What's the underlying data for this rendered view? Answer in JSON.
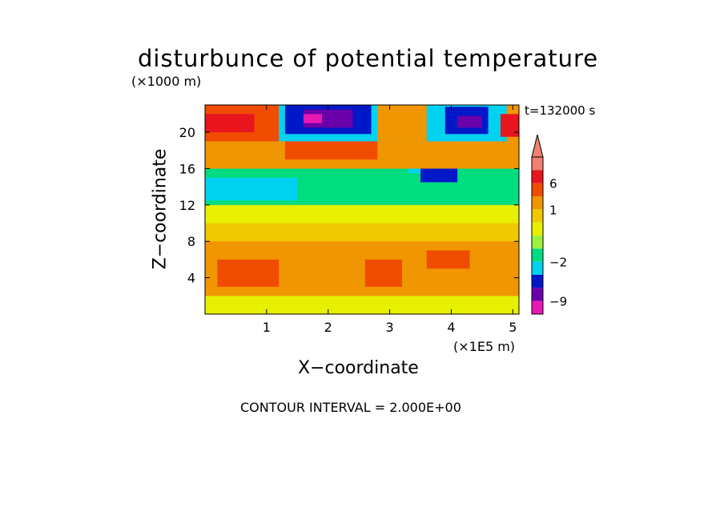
{
  "chart_data": {
    "type": "heatmap",
    "title": "disturbunce of potential temperature",
    "time_label": "t=132000 s",
    "xlabel": "X−coordinate",
    "ylabel": "Z−coordinate",
    "x_unit": "(×1E5 m)",
    "y_unit": "(×1000 m)",
    "xlim": [
      0,
      5.1
    ],
    "ylim": [
      0,
      23
    ],
    "x_ticks": [
      "1",
      "2",
      "3",
      "4",
      "5"
    ],
    "y_ticks": [
      "4",
      "8",
      "12",
      "16",
      "20"
    ],
    "contour_interval_label": "CONTOUR INTERVAL = 2.000E+00",
    "colorbar": {
      "tick_labels": [
        "6",
        "1",
        "−2",
        "−9"
      ],
      "tick_values": [
        6,
        1,
        -2,
        -9
      ],
      "levels": [
        {
          "from": 9,
          "to": 15,
          "color": "#f08070"
        },
        {
          "from": 6,
          "to": 9,
          "color": "#e8141e"
        },
        {
          "from": 3,
          "to": 6,
          "color": "#f04c00"
        },
        {
          "from": 1,
          "to": 3,
          "color": "#f09600"
        },
        {
          "from": 0,
          "to": 1,
          "color": "#f0c800"
        },
        {
          "from": -1,
          "to": 0,
          "color": "#e6f000"
        },
        {
          "from": -1.5,
          "to": -1,
          "color": "#9ef040"
        },
        {
          "from": -2,
          "to": -1.5,
          "color": "#00dc80"
        },
        {
          "from": -3,
          "to": -2,
          "color": "#00d2f0"
        },
        {
          "from": -6,
          "to": -3,
          "color": "#0018c8"
        },
        {
          "from": -9,
          "to": -6,
          "color": "#6a00aa"
        },
        {
          "from": -15,
          "to": -9,
          "color": "#e818b4"
        }
      ]
    },
    "field_regions": [
      {
        "x": [
          0,
          5.1
        ],
        "z": [
          0,
          23
        ],
        "value": 1
      },
      {
        "x": [
          0,
          5.1
        ],
        "z": [
          0,
          2
        ],
        "value": -0.5
      },
      {
        "x": [
          0,
          5.1
        ],
        "z": [
          2,
          8
        ],
        "value": 2
      },
      {
        "x": [
          0,
          5.1
        ],
        "z": [
          8,
          10
        ],
        "value": 0
      },
      {
        "x": [
          0,
          5.1
        ],
        "z": [
          10,
          12
        ],
        "value": -0.5
      },
      {
        "x": [
          0,
          5.1
        ],
        "z": [
          12,
          16
        ],
        "value": -1.7
      },
      {
        "x": [
          0,
          1.5
        ],
        "z": [
          12.5,
          15
        ],
        "value": -2.5
      },
      {
        "x": [
          3.3,
          4.1
        ],
        "z": [
          15.5,
          19
        ],
        "value": -2.5
      },
      {
        "x": [
          3.5,
          4.1
        ],
        "z": [
          14.5,
          16
        ],
        "value": -4
      },
      {
        "x": [
          0,
          5.1
        ],
        "z": [
          16,
          19
        ],
        "value": 1
      },
      {
        "x": [
          1.3,
          2.8
        ],
        "z": [
          17,
          19.5
        ],
        "value": 3
      },
      {
        "x": [
          0,
          1.2
        ],
        "z": [
          19,
          23
        ],
        "value": 4
      },
      {
        "x": [
          0,
          0.8
        ],
        "z": [
          20,
          22
        ],
        "value": 7
      },
      {
        "x": [
          1.2,
          3.2
        ],
        "z": [
          19,
          23
        ],
        "value": -2.5
      },
      {
        "x": [
          1.3,
          2.7
        ],
        "z": [
          19.8,
          23
        ],
        "value": -4
      },
      {
        "x": [
          1.6,
          2.4
        ],
        "z": [
          20.5,
          22.5
        ],
        "value": -7
      },
      {
        "x": [
          1.6,
          1.9
        ],
        "z": [
          21,
          22
        ],
        "value": -11
      },
      {
        "x": [
          2.8,
          3.6
        ],
        "z": [
          19,
          23
        ],
        "value": 2
      },
      {
        "x": [
          3.6,
          4.9
        ],
        "z": [
          19,
          23
        ],
        "value": -2.5
      },
      {
        "x": [
          3.9,
          4.6
        ],
        "z": [
          19.8,
          22.8
        ],
        "value": -4
      },
      {
        "x": [
          4.1,
          4.5
        ],
        "z": [
          20.5,
          21.8
        ],
        "value": -7
      },
      {
        "x": [
          4.8,
          5.1
        ],
        "z": [
          19.5,
          22
        ],
        "value": 7
      },
      {
        "x": [
          0.2,
          1.2
        ],
        "z": [
          3,
          6
        ],
        "value": 4
      },
      {
        "x": [
          2.6,
          3.2
        ],
        "z": [
          3,
          6
        ],
        "value": 4
      },
      {
        "x": [
          3.6,
          4.3
        ],
        "z": [
          5,
          7
        ],
        "value": 4
      }
    ]
  }
}
